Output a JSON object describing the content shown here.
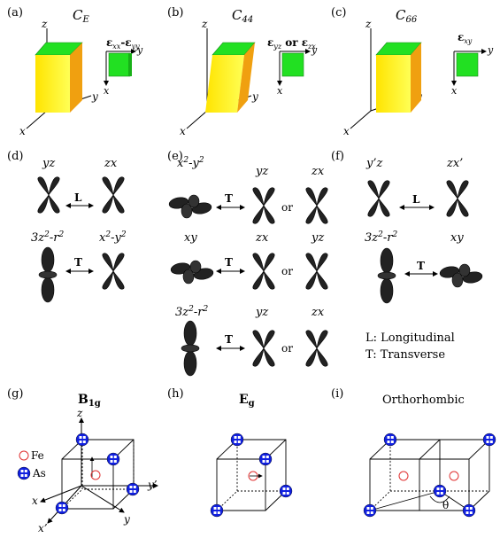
{
  "panels": {
    "a": {
      "label": "(a)",
      "title": "C",
      "title_sub": "E",
      "strain_pre": "ε",
      "strain_sub1": "xx",
      "strain_mid": "-ε",
      "strain_sub2": "yy"
    },
    "b": {
      "label": "(b)",
      "title": "C",
      "title_sub": "44",
      "strain_pre": "ε",
      "strain_sub1": "yz",
      "strain_mid": " or ε",
      "strain_sub2": "zx"
    },
    "c": {
      "label": "(c)",
      "title": "C",
      "title_sub": "66",
      "strain_pre": "ε",
      "strain_sub1": "xy"
    },
    "d": {
      "label": "(d)",
      "row1_left": "yz",
      "row1_right": "zx",
      "row1_arrow": "L",
      "row2_left": "3z",
      "row2_left_exp": "2",
      "row2_left_tail": "-r",
      "row2_left_exp2": "2",
      "row2_right": "x",
      "row2_right_exp": "2",
      "row2_right_tail": "-y",
      "row2_right_exp2": "2",
      "row2_arrow": "T"
    },
    "e": {
      "label": "(e)",
      "r1_a": "x",
      "r1_a_exp": "2",
      "r1_a_tail": "-y",
      "r1_a_exp2": "2",
      "r1_b": "yz",
      "r1_c": "zx",
      "r2_a": "xy",
      "r2_b": "zx",
      "r2_c": "yz",
      "r3_a": "3z",
      "r3_a_exp": "2",
      "r3_a_tail": "-r",
      "r3_a_exp2": "2",
      "r3_b": "yz",
      "r3_c": "zx",
      "arrow": "T",
      "or": "or"
    },
    "f": {
      "label": "(f)",
      "r1_left": "y’z",
      "r1_right": "zx’",
      "r1_arrow": "L",
      "r2_left": "3z",
      "r2_left_exp": "2",
      "r2_left_tail": "-r",
      "r2_left_exp2": "2",
      "r2_right": "xy",
      "r2_arrow": "T"
    },
    "legend": {
      "l": "L: Longitudinal",
      "t": "T: Transverse"
    },
    "g": {
      "label": "(g)",
      "title": "B",
      "title_sub": "1g",
      "fe": "Fe",
      "as": "As"
    },
    "h": {
      "label": "(h)",
      "title": "E",
      "title_sub": "g"
    },
    "i": {
      "label": "(i)",
      "title": "Orthorhombic",
      "theta": "θ"
    }
  },
  "axes": {
    "x": "x",
    "y": "y",
    "z": "z",
    "xp": "x’",
    "yp": "y’"
  },
  "colors": {
    "top": "#22e022",
    "front": "#ffff22",
    "side": "#f0a010",
    "fe": "#e03030",
    "as": "#1010e0"
  }
}
